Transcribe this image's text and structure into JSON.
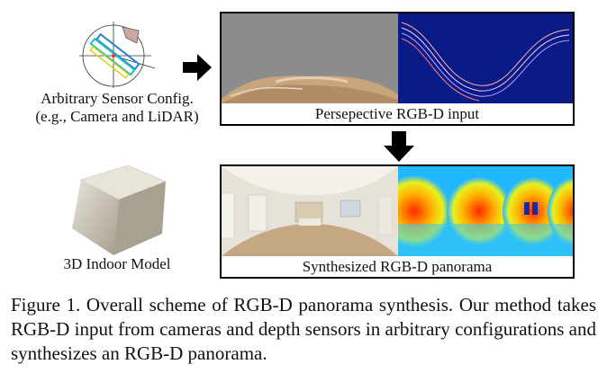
{
  "sensor": {
    "caption_line1": "Arbitrary Sensor Config.",
    "caption_line2": "(e.g., Camera and LiDAR)"
  },
  "input_panel": {
    "label": "Persepective RGB-D input"
  },
  "pano_panel": {
    "label": "Synthesized RGB-D panorama"
  },
  "model": {
    "caption": "3D Indoor Model"
  },
  "figure": {
    "caption": "Figure 1.  Overall scheme of RGB-D panorama synthesis.  Our method takes RGB-D input from cameras and depth sensors in arbitrary configurations and synthesizes an RGB-D panorama."
  },
  "icons": [
    "sensor-config-icon",
    "arrow-right-icon",
    "arrow-down-icon",
    "indoor-model-icon"
  ],
  "colors": {
    "depth_background": "#0a1a86",
    "panorama_depth_near": "#ff2a00",
    "panorama_depth_far": "#22b8ff"
  }
}
